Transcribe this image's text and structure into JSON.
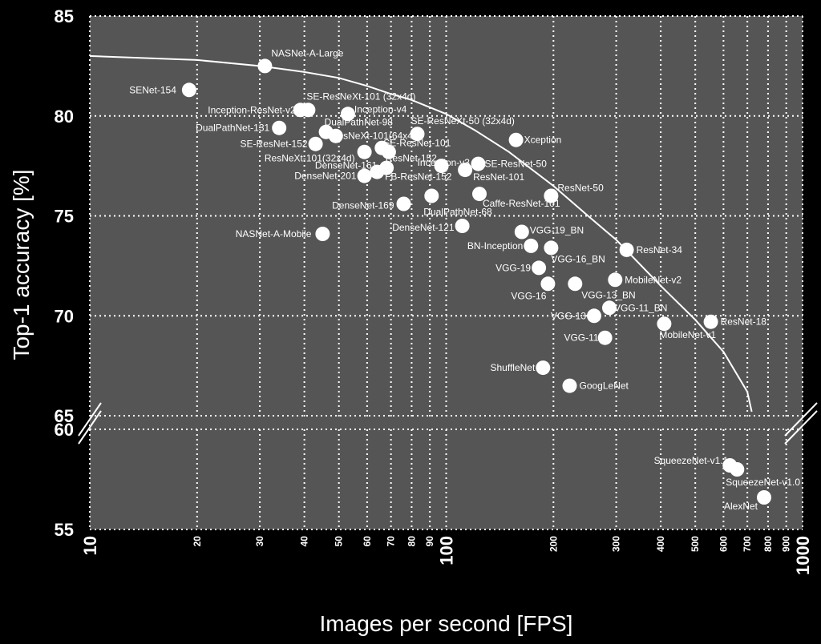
{
  "chart_data": {
    "type": "scatter",
    "xlabel": "Images per second [FPS]",
    "ylabel": "Top-1 accuracy [%]",
    "x_scale": "log",
    "xlim": [
      10,
      1000
    ],
    "ylim_upper": [
      65,
      85
    ],
    "ylim_lower": [
      55,
      60
    ],
    "y_ticks_upper": [
      65,
      70,
      75,
      80,
      85
    ],
    "y_ticks_lower": [
      55,
      60
    ],
    "x_ticks_major": [
      10,
      100,
      1000
    ],
    "x_ticks_minor": [
      20,
      30,
      40,
      50,
      60,
      70,
      80,
      90,
      200,
      300,
      400,
      500,
      600,
      700,
      800,
      900
    ],
    "grid": true,
    "background": "#555555",
    "point_color": "#ffffff",
    "points": [
      {
        "label": "NASNet-A-Large",
        "x": 31,
        "y": 82.5
      },
      {
        "label": "SENet-154",
        "x": 19,
        "y": 81.3
      },
      {
        "label": "Inception-ResNet-v2",
        "x": 39,
        "y": 80.3
      },
      {
        "label": "SE-ResNeXt-101 (32x4d)",
        "x": 41,
        "y": 80.3
      },
      {
        "label": "Inception-v4",
        "x": 53,
        "y": 80.1
      },
      {
        "label": "DualPathNet-131",
        "x": 34,
        "y": 79.4
      },
      {
        "label": "DualPathNet-98",
        "x": 46,
        "y": 79.2
      },
      {
        "label": "ResNeXt-101(64x4d)",
        "x": 49,
        "y": 79.0
      },
      {
        "label": "SE-ResNeXt-50 (32x4d)",
        "x": 83,
        "y": 79.1
      },
      {
        "label": "Xception",
        "x": 157,
        "y": 78.8
      },
      {
        "label": "SE-ResNet-152",
        "x": 43,
        "y": 78.6
      },
      {
        "label": "SE-ResNet-101",
        "x": 66,
        "y": 78.4
      },
      {
        "label": "ResNeXt-101(32x4d)",
        "x": 59,
        "y": 78.2
      },
      {
        "label": "ResNet-152",
        "x": 69,
        "y": 78.2
      },
      {
        "label": "DenseNet-161",
        "x": 64,
        "y": 77.2
      },
      {
        "label": "Inception-v3",
        "x": 97,
        "y": 77.5
      },
      {
        "label": "SE-ResNet-50",
        "x": 123,
        "y": 77.6
      },
      {
        "label": "DenseNet-201",
        "x": 59,
        "y": 77.0
      },
      {
        "label": "FB-ResNet-152",
        "x": 68,
        "y": 77.4
      },
      {
        "label": "ResNet-101",
        "x": 113,
        "y": 77.3
      },
      {
        "label": "ResNet-50",
        "x": 197,
        "y": 76.0
      },
      {
        "label": "DenseNet-169",
        "x": 76,
        "y": 75.6
      },
      {
        "label": "DualPathNet-68",
        "x": 91,
        "y": 76.0
      },
      {
        "label": "Caffe-ResNet-101",
        "x": 124,
        "y": 76.1
      },
      {
        "label": "NASNet-A-Mobile",
        "x": 45,
        "y": 74.1
      },
      {
        "label": "DenseNet-121",
        "x": 111,
        "y": 74.5
      },
      {
        "label": "VGG-19_BN",
        "x": 163,
        "y": 74.2
      },
      {
        "label": "BN-Inception",
        "x": 173,
        "y": 73.5
      },
      {
        "label": "VGG-16_BN",
        "x": 197,
        "y": 73.4
      },
      {
        "label": "ResNet-34",
        "x": 321,
        "y": 73.3
      },
      {
        "label": "VGG-19",
        "x": 182,
        "y": 72.4
      },
      {
        "label": "MobileNet-v2",
        "x": 298,
        "y": 71.8
      },
      {
        "label": "VGG-16",
        "x": 193,
        "y": 71.6
      },
      {
        "label": "VGG-13_BN",
        "x": 230,
        "y": 71.6
      },
      {
        "label": "VGG-11_BN",
        "x": 287,
        "y": 70.4
      },
      {
        "label": "VGG-13",
        "x": 260,
        "y": 70.0
      },
      {
        "label": "ResNet-18",
        "x": 553,
        "y": 69.7
      },
      {
        "label": "MobileNet-v1",
        "x": 409,
        "y": 69.6
      },
      {
        "label": "VGG-11",
        "x": 279,
        "y": 68.9
      },
      {
        "label": "ShuffleNet",
        "x": 187,
        "y": 67.4
      },
      {
        "label": "GoogLeNet",
        "x": 222,
        "y": 66.5
      },
      {
        "label": "SqueezeNet-v1.1",
        "x": 625,
        "y": 58.2
      },
      {
        "label": "SqueezeNet-v1.0",
        "x": 655,
        "y": 58.0
      },
      {
        "label": "AlexNet",
        "x": 780,
        "y": 56.6
      }
    ],
    "trend_curve": [
      [
        10,
        83.0
      ],
      [
        20,
        82.8
      ],
      [
        30,
        82.5
      ],
      [
        40,
        82.2
      ],
      [
        50,
        81.9
      ],
      [
        60,
        81.5
      ],
      [
        70,
        81.1
      ],
      [
        80,
        80.8
      ],
      [
        100,
        80.1
      ],
      [
        120,
        79.3
      ],
      [
        150,
        78.2
      ],
      [
        200,
        76.5
      ],
      [
        250,
        75.0
      ],
      [
        300,
        73.8
      ],
      [
        400,
        71.5
      ],
      [
        500,
        69.8
      ],
      [
        600,
        68.2
      ],
      [
        700,
        66.2
      ],
      [
        720,
        65.2
      ]
    ]
  }
}
